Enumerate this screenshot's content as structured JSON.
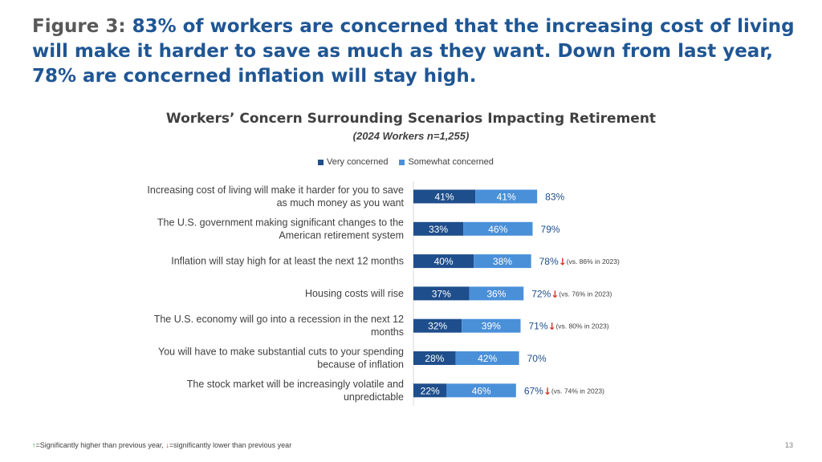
{
  "figure": {
    "label": "Figure 3:",
    "text": "83% of workers are concerned that the increasing cost of living will make it harder to save as much as they want. Down from last year, 78% are concerned inflation will stay high."
  },
  "colors": {
    "very_concerned": "#1f4e8c",
    "somewhat_concerned": "#4a90d9",
    "total_text": "#1f4e8c",
    "down_arrow": "#d4342a",
    "up_arrow": "#2e9e3a"
  },
  "chart_data": {
    "type": "bar",
    "orientation": "horizontal",
    "stacked": true,
    "title": "Workers’ Concern Surrounding Scenarios Impacting Retirement",
    "subtitle": "(2024 Workers n=1,255)",
    "xlim": [
      0,
      100
    ],
    "grid": false,
    "legend_position": "top",
    "categories": [
      [
        "Increasing cost of living will make it harder for you to save",
        "as much money as you want"
      ],
      [
        "The U.S. government making significant changes to the",
        "American retirement system"
      ],
      [
        "Inflation will stay high for at least the next 12 months"
      ],
      [
        "Housing costs will rise"
      ],
      [
        "The U.S. economy will go into a recession in the next 12",
        "months"
      ],
      [
        "You will have to make substantial cuts to your spending",
        "because of inflation"
      ],
      [
        "The stock market will be increasingly volatile and",
        "unpredictable"
      ]
    ],
    "series": [
      {
        "name": "Very concerned",
        "values": [
          41,
          33,
          40,
          37,
          32,
          28,
          22
        ]
      },
      {
        "name": "Somewhat concerned",
        "values": [
          41,
          46,
          38,
          36,
          39,
          42,
          46
        ]
      }
    ],
    "totals": [
      83,
      79,
      78,
      72,
      71,
      70,
      67
    ],
    "significance": [
      "",
      "",
      "down",
      "down",
      "down",
      "",
      "down"
    ],
    "comparisons": [
      "",
      "",
      "(vs. 86% in 2023)",
      "(vs. 76% in 2023)",
      "(vs. 80% in 2023)",
      "",
      "(vs. 74% in 2023)"
    ]
  },
  "footnote": {
    "up_text": "=Significantly higher than previous year, ",
    "down_text": "=significantly lower than previous year"
  },
  "page_number": "13"
}
